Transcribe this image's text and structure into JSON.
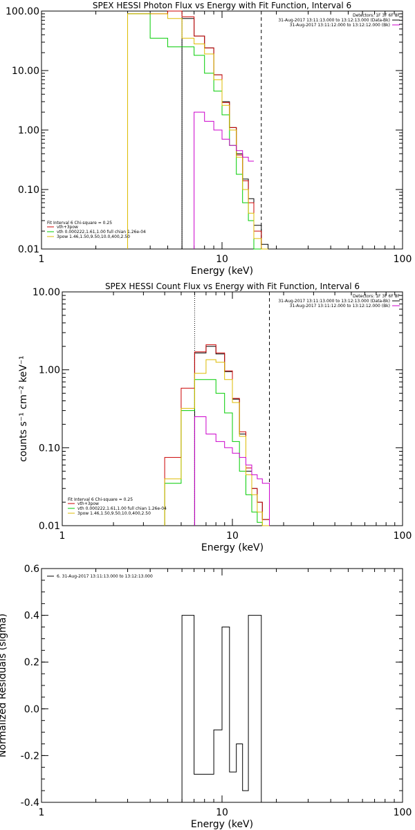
{
  "chart_data": [
    {
      "type": "line",
      "title": "SPEX HESSI Photon Flux vs Energy with Fit Function, Interval 6",
      "xlabel": "Energy (keV)",
      "ylabel": "",
      "xscale": "log",
      "yscale": "log",
      "xlim": [
        1,
        100
      ],
      "ylim": [
        0.01,
        100
      ],
      "xticks": [
        "1",
        "10",
        "100"
      ],
      "yticks": [
        "0.01",
        "0.10",
        "1.00",
        "10.00",
        "100.00"
      ],
      "colors": {
        "data": "#000000",
        "total": "#cc0000",
        "vth": "#00cc00",
        "pow": "#ddbb00",
        "bk": "#cc00cc"
      },
      "energy_range": [
        6,
        16.5
      ],
      "upper_right_legend": [
        "Detectors: 1F 3F 6F 8F",
        "31-Aug-2017 13:11:13.000 to 13:12:13.000 (Data-Bk)",
        "31-Aug-2017 13:11:12.000 to 13:12:12.000 (Bk)"
      ],
      "lower_left_legend": [
        "Fit Interval 6   Chi-square = 0.25",
        "vth+3pow",
        "vth 0.000222,1.61,1.00  full chian 1.26e-04",
        "3pow 1.46,1.50,9.50,10.0,400,2.50"
      ],
      "bin_edges": [
        3,
        4,
        5,
        6,
        7,
        8,
        9,
        10,
        11,
        12,
        13,
        14,
        15,
        16.5,
        18
      ],
      "series": [
        {
          "name": "Data-Bk",
          "values": [
            null,
            null,
            null,
            75,
            38,
            24,
            8.5,
            3,
            1.1,
            0.4,
            0.15,
            0.07,
            0.025,
            0.012
          ]
        },
        {
          "name": "vth+3pow",
          "values": [
            90,
            90,
            100,
            80,
            38,
            24,
            8.5,
            2.9,
            1.1,
            0.38,
            0.14,
            0.06,
            0.02,
            0.01
          ]
        },
        {
          "name": "vth",
          "values": [
            90,
            35,
            25,
            25,
            18,
            9,
            4.5,
            1.8,
            0.55,
            0.18,
            0.06,
            0.03,
            0.01,
            0.01
          ]
        },
        {
          "name": "3pow",
          "values": [
            90,
            90,
            75,
            35,
            28,
            19,
            7,
            2.6,
            1,
            0.35,
            0.1,
            0.04,
            0.015,
            0.01
          ]
        },
        {
          "name": "Bk",
          "values": [
            null,
            null,
            null,
            null,
            2,
            1.4,
            1,
            0.7,
            0.55,
            0.45,
            0.35,
            0.3,
            null,
            null
          ]
        }
      ]
    },
    {
      "type": "line",
      "title": "SPEX HESSI Count Flux vs Energy with Fit Function, Interval 6",
      "xlabel": "Energy (keV)",
      "ylabel": "counts s⁻¹ cm⁻² keV⁻¹",
      "xscale": "log",
      "yscale": "log",
      "xlim": [
        1,
        100
      ],
      "ylim": [
        0.01,
        10
      ],
      "xticks": [
        "1",
        "10",
        "100"
      ],
      "yticks": [
        "0.01",
        "0.10",
        "1.00",
        "10.00"
      ],
      "energy_range": [
        6,
        16.5
      ],
      "upper_right_legend": [
        "Detectors: 1F 3F 6F 8F",
        "31-Aug-2017 13:11:13.000 to 13:12:13.000 (Data-Bk)",
        "31-Aug-2017 13:11:12.000 to 13:12:12.000 (Bk)"
      ],
      "lower_left_legend": [
        "Fit Interval 6   Chi-square = 0.25",
        "vth+3pow",
        "vth 0.000222,1.61,1.00  full chian 1.26e-04",
        "3pow 1.46,1.50,9.50,10.0,400,2.50"
      ],
      "bin_edges": [
        4,
        5,
        6,
        7,
        8,
        9,
        10,
        11,
        12,
        13,
        14,
        15,
        16.5
      ],
      "series": [
        {
          "name": "Data-Bk",
          "values": [
            null,
            null,
            1.65,
            2.0,
            1.6,
            0.95,
            0.42,
            0.15,
            0.05,
            0.03,
            0.02,
            0.012
          ]
        },
        {
          "name": "vth+3pow",
          "values": [
            0.075,
            0.58,
            1.7,
            2.1,
            1.65,
            0.97,
            0.43,
            0.16,
            0.055,
            0.03,
            0.02,
            0.012
          ]
        },
        {
          "name": "vth",
          "values": [
            0.035,
            0.3,
            0.75,
            0.75,
            0.5,
            0.28,
            0.12,
            0.05,
            0.025,
            0.015,
            0.011,
            0.01
          ]
        },
        {
          "name": "3pow",
          "values": [
            0.04,
            0.32,
            0.9,
            1.35,
            1.25,
            0.75,
            0.38,
            0.14,
            0.045,
            0.025,
            0.015,
            0.01
          ]
        },
        {
          "name": "Bk",
          "values": [
            null,
            null,
            0.25,
            0.15,
            0.12,
            0.1,
            0.085,
            0.075,
            0.06,
            0.045,
            0.04,
            0.035
          ]
        }
      ]
    },
    {
      "type": "line",
      "title": "",
      "xlabel": "Energy (keV)",
      "ylabel": "Normalized Residuals (sigma)",
      "xscale": "log",
      "yscale": "linear",
      "xlim": [
        1,
        100
      ],
      "ylim": [
        -0.4,
        0.6
      ],
      "xticks": [
        "1",
        "10",
        "100"
      ],
      "yticks": [
        "-0.4",
        "-0.2",
        "0.0",
        "0.2",
        "0.4",
        "0.6"
      ],
      "legend": [
        "6. 31-Aug-2017 13:11:13.000 to 13:12:13.000"
      ],
      "bin_edges": [
        6,
        7,
        8,
        9,
        10,
        11,
        12,
        13,
        14,
        15,
        16.5
      ],
      "series": [
        {
          "name": "6. 31-Aug-2017 13:11:13.000 to 13:12:13.000",
          "values": [
            0.4,
            -0.28,
            -0.28,
            -0.09,
            0.35,
            -0.27,
            -0.15,
            -0.35,
            0.4,
            0.4
          ]
        }
      ]
    }
  ]
}
